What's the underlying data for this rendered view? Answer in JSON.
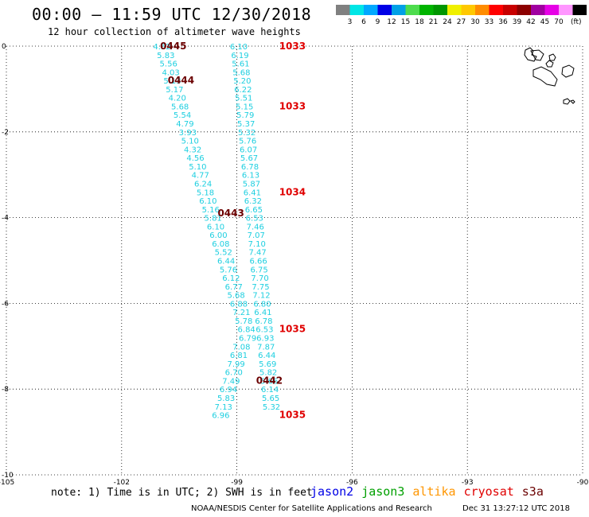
{
  "header": {
    "title": "00:00 — 11:59 UTC 12/30/2018",
    "subtitle": "12 hour collection of altimeter wave heights"
  },
  "colorbar": {
    "unit_label": "(ft)",
    "bins": [
      {
        "color": "#808080",
        "label": ""
      },
      {
        "color": "#00e6e6",
        "label": "3"
      },
      {
        "color": "#00a8ff",
        "label": "6"
      },
      {
        "color": "#0000e6",
        "label": "9"
      },
      {
        "color": "#00a0e6",
        "label": "12"
      },
      {
        "color": "#4ddc4d",
        "label": "15"
      },
      {
        "color": "#00b400",
        "label": "18"
      },
      {
        "color": "#009600",
        "label": "21"
      },
      {
        "color": "#f0f000",
        "label": "24"
      },
      {
        "color": "#ffc800",
        "label": "27"
      },
      {
        "color": "#ff8c00",
        "label": "30"
      },
      {
        "color": "#ff0000",
        "label": "33"
      },
      {
        "color": "#c80000",
        "label": "36"
      },
      {
        "color": "#8c0000",
        "label": "39"
      },
      {
        "color": "#a000a0",
        "label": "42"
      },
      {
        "color": "#e600e6",
        "label": "45"
      },
      {
        "color": "#ff96ff",
        "label": "70"
      },
      {
        "color": "#000000",
        "label": ""
      }
    ]
  },
  "chart_data": {
    "type": "scatter",
    "title": "00:00 — 11:59 UTC 12/30/2018",
    "subtitle": "12 hour collection of altimeter wave heights",
    "xlim": [
      -105,
      -90
    ],
    "ylim": [
      -10,
      0
    ],
    "x_ticks": [
      "-105",
      "-102",
      "-99",
      "-96",
      "-93",
      "-90"
    ],
    "y_ticks": [
      "0",
      "-2",
      "-4",
      "-6",
      "-8",
      "-10"
    ],
    "grid": true,
    "point_color": "#1ecfe0",
    "time_label_colors": {
      "s3a": "#6b0000",
      "cryosat": "#e00000"
    },
    "series": [
      {
        "name": "s3a",
        "tracks": [
          {
            "values": [
              {
                "x": -100.95,
                "y": 0.0,
                "v": "4.52"
              },
              {
                "x": -100.85,
                "y": -0.2,
                "v": "5.83"
              },
              {
                "x": -100.78,
                "y": -0.4,
                "v": "5.56"
              },
              {
                "x": -100.72,
                "y": -0.6,
                "v": "4.03"
              },
              {
                "x": -100.68,
                "y": -0.8,
                "v": "5.13"
              },
              {
                "x": -100.62,
                "y": -1.0,
                "v": "5.17"
              },
              {
                "x": -100.55,
                "y": -1.2,
                "v": "4.20"
              },
              {
                "x": -100.48,
                "y": -1.4,
                "v": "5.68"
              },
              {
                "x": -100.42,
                "y": -1.6,
                "v": "5.54"
              },
              {
                "x": -100.35,
                "y": -1.8,
                "v": "4.79"
              },
              {
                "x": -100.28,
                "y": -2.0,
                "v": "3.93"
              },
              {
                "x": -100.22,
                "y": -2.2,
                "v": "5.10"
              },
              {
                "x": -100.15,
                "y": -2.4,
                "v": "4.32"
              },
              {
                "x": -100.08,
                "y": -2.6,
                "v": "4.56"
              },
              {
                "x": -100.02,
                "y": -2.8,
                "v": "5.10"
              },
              {
                "x": -99.95,
                "y": -3.0,
                "v": "4.77"
              },
              {
                "x": -99.88,
                "y": -3.2,
                "v": "6.24"
              },
              {
                "x": -99.82,
                "y": -3.4,
                "v": "5.18"
              },
              {
                "x": -99.75,
                "y": -3.6,
                "v": "6.10"
              },
              {
                "x": -99.68,
                "y": -3.8,
                "v": "5.16"
              },
              {
                "x": -99.62,
                "y": -4.0,
                "v": "5.81"
              },
              {
                "x": -99.55,
                "y": -4.2,
                "v": "6.10"
              },
              {
                "x": -99.48,
                "y": -4.4,
                "v": "6.00"
              },
              {
                "x": -99.42,
                "y": -4.6,
                "v": "6.08"
              },
              {
                "x": -99.35,
                "y": -4.8,
                "v": "5.52"
              },
              {
                "x": -99.28,
                "y": -5.0,
                "v": "6.44"
              },
              {
                "x": -99.22,
                "y": -5.2,
                "v": "5.76"
              },
              {
                "x": -99.15,
                "y": -5.4,
                "v": "6.12"
              },
              {
                "x": -99.08,
                "y": -5.6,
                "v": "6.77"
              },
              {
                "x": -99.02,
                "y": -5.8,
                "v": "5.68"
              },
              {
                "x": -98.95,
                "y": -6.0,
                "v": "6.88"
              },
              {
                "x": -98.88,
                "y": -6.2,
                "v": "7.21"
              },
              {
                "x": -98.82,
                "y": -6.4,
                "v": "5.78"
              },
              {
                "x": -98.75,
                "y": -6.6,
                "v": "6.84"
              }
            ]
          },
          {
            "values": [
              {
                "x": -98.72,
                "y": -6.8,
                "v": "6.79"
              },
              {
                "x": -98.88,
                "y": -7.0,
                "v": "7.08"
              },
              {
                "x": -98.95,
                "y": -7.2,
                "v": "6.81"
              },
              {
                "x": -99.02,
                "y": -7.4,
                "v": "7.99"
              },
              {
                "x": -99.08,
                "y": -7.6,
                "v": "6.70"
              },
              {
                "x": -99.15,
                "y": -7.8,
                "v": "7.49"
              },
              {
                "x": -99.22,
                "y": -8.0,
                "v": "6.94"
              },
              {
                "x": -99.28,
                "y": -8.2,
                "v": "5.83"
              },
              {
                "x": -99.35,
                "y": -8.4,
                "v": "7.13"
              },
              {
                "x": -99.42,
                "y": -8.6,
                "v": "6.96"
              }
            ]
          }
        ],
        "time_labels": [
          {
            "x": -101.0,
            "y": 0.0,
            "text": "0445"
          },
          {
            "x": -100.8,
            "y": -0.8,
            "text": "0444"
          },
          {
            "x": -99.5,
            "y": -3.9,
            "text": "0443"
          },
          {
            "x": -98.5,
            "y": -7.8,
            "text": "0442"
          }
        ]
      },
      {
        "name": "cryosat",
        "tracks": [
          {
            "values": [
              {
                "x": -98.95,
                "y": 0.0,
                "v": "6.10"
              },
              {
                "x": -98.92,
                "y": -0.2,
                "v": "6.19"
              },
              {
                "x": -98.9,
                "y": -0.4,
                "v": "5.61"
              },
              {
                "x": -98.88,
                "y": -0.6,
                "v": "5.68"
              },
              {
                "x": -98.86,
                "y": -0.8,
                "v": "5.20"
              },
              {
                "x": -98.84,
                "y": -1.0,
                "v": "6.22"
              },
              {
                "x": -98.82,
                "y": -1.2,
                "v": "5.51"
              },
              {
                "x": -98.8,
                "y": -1.4,
                "v": "5.15"
              },
              {
                "x": -98.78,
                "y": -1.6,
                "v": "5.79"
              },
              {
                "x": -98.76,
                "y": -1.8,
                "v": "5.37"
              },
              {
                "x": -98.74,
                "y": -2.0,
                "v": "5.32"
              },
              {
                "x": -98.72,
                "y": -2.2,
                "v": "5.76"
              },
              {
                "x": -98.7,
                "y": -2.4,
                "v": "6.07"
              },
              {
                "x": -98.68,
                "y": -2.6,
                "v": "5.67"
              },
              {
                "x": -98.66,
                "y": -2.8,
                "v": "6.78"
              },
              {
                "x": -98.64,
                "y": -3.0,
                "v": "6.13"
              },
              {
                "x": -98.62,
                "y": -3.2,
                "v": "5.87"
              },
              {
                "x": -98.6,
                "y": -3.4,
                "v": "6.41"
              },
              {
                "x": -98.58,
                "y": -3.6,
                "v": "6.32"
              },
              {
                "x": -98.56,
                "y": -3.8,
                "v": "6.65"
              },
              {
                "x": -98.54,
                "y": -4.0,
                "v": "6.53"
              },
              {
                "x": -98.52,
                "y": -4.2,
                "v": "7.46"
              },
              {
                "x": -98.5,
                "y": -4.4,
                "v": "7.07"
              },
              {
                "x": -98.48,
                "y": -4.6,
                "v": "7.10"
              },
              {
                "x": -98.46,
                "y": -4.8,
                "v": "7.47"
              },
              {
                "x": -98.44,
                "y": -5.0,
                "v": "6.66"
              },
              {
                "x": -98.42,
                "y": -5.2,
                "v": "6.75"
              },
              {
                "x": -98.4,
                "y": -5.4,
                "v": "7.70"
              },
              {
                "x": -98.38,
                "y": -5.6,
                "v": "7.75"
              },
              {
                "x": -98.36,
                "y": -5.8,
                "v": "7.12"
              },
              {
                "x": -98.34,
                "y": -6.0,
                "v": "6.80"
              },
              {
                "x": -98.32,
                "y": -6.2,
                "v": "6.41"
              },
              {
                "x": -98.3,
                "y": -6.4,
                "v": "6.78"
              },
              {
                "x": -98.28,
                "y": -6.6,
                "v": "6.53"
              },
              {
                "x": -98.26,
                "y": -6.8,
                "v": "6.93"
              },
              {
                "x": -98.24,
                "y": -7.0,
                "v": "7.87"
              },
              {
                "x": -98.22,
                "y": -7.2,
                "v": "6.44"
              },
              {
                "x": -98.2,
                "y": -7.4,
                "v": "5.69"
              },
              {
                "x": -98.18,
                "y": -7.6,
                "v": "5.82"
              },
              {
                "x": -98.16,
                "y": -7.8,
                "v": "5.66"
              },
              {
                "x": -98.14,
                "y": -8.0,
                "v": "6.14"
              },
              {
                "x": -98.12,
                "y": -8.2,
                "v": "5.65"
              },
              {
                "x": -98.1,
                "y": -8.4,
                "v": "5.32"
              }
            ]
          }
        ],
        "time_labels": [
          {
            "x": -97.9,
            "y": 0.0,
            "text": "1033"
          },
          {
            "x": -97.9,
            "y": -1.4,
            "text": "1033"
          },
          {
            "x": -97.9,
            "y": -3.4,
            "text": "1034"
          },
          {
            "x": -97.9,
            "y": -6.6,
            "text": "1035"
          },
          {
            "x": -97.9,
            "y": -8.6,
            "text": "1035"
          }
        ]
      }
    ]
  },
  "footer": {
    "note": "note: 1) Time is in UTC; 2) SWH is in feet",
    "satellites": [
      {
        "label": "jason2",
        "color": "#0000e6"
      },
      {
        "label": "jason3",
        "color": "#00a000"
      },
      {
        "label": "altika",
        "color": "#ff9600"
      },
      {
        "label": "cryosat",
        "color": "#e00000"
      },
      {
        "label": "s3a",
        "color": "#6b0000"
      }
    ],
    "credit": "NOAA/NESDIS Center for Satellite Applications and Research",
    "timestamp": "Dec 31 13:27:12 UTC 2018"
  }
}
